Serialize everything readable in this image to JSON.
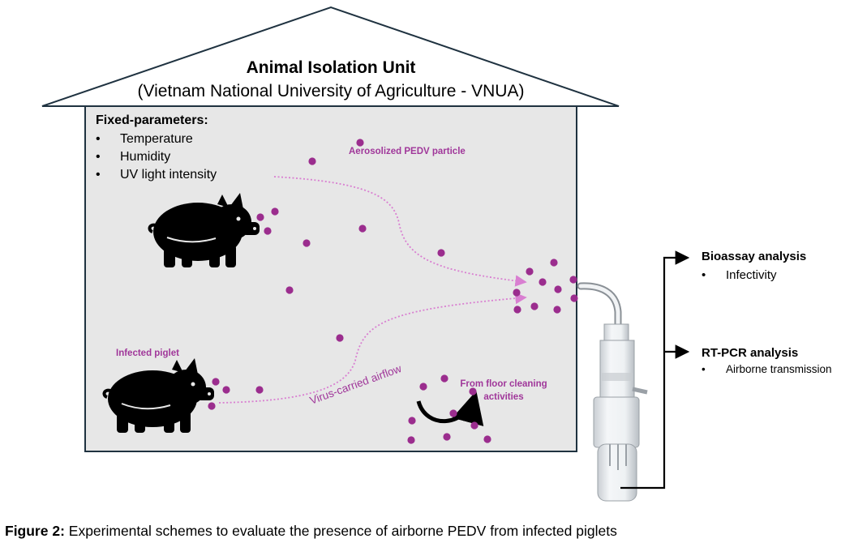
{
  "house": {
    "title": "Animal Isolation Unit",
    "subtitle": "(Vietnam National University of Agriculture - VNUA)"
  },
  "fixed_parameters": {
    "heading": "Fixed-parameters:",
    "items": [
      "Temperature",
      "Humidity",
      "UV light intensity"
    ]
  },
  "labels": {
    "aerosol": "Aerosolized PEDV particle",
    "infected_piglet": "Infected piglet",
    "airflow": "Virus-carried airflow",
    "floor_cleaning_line1": "From floor cleaning",
    "floor_cleaning_line2": "activities"
  },
  "analyses": {
    "bioassay": {
      "heading": "Bioassay analysis",
      "item": "Infectivity"
    },
    "rtpcr": {
      "heading": "RT-PCR analysis",
      "item": "Airborne transmission"
    }
  },
  "caption": {
    "label": "Figure 2:",
    "text": " Experimental schemes to evaluate the presence of airborne PEDV from infected piglets"
  },
  "colors": {
    "particle": "#9b2d8e",
    "label_purple": "#a0379a",
    "airflow_line": "#d97fd1",
    "room_fill": "#e7e7e7",
    "outline": "#1f3240"
  }
}
